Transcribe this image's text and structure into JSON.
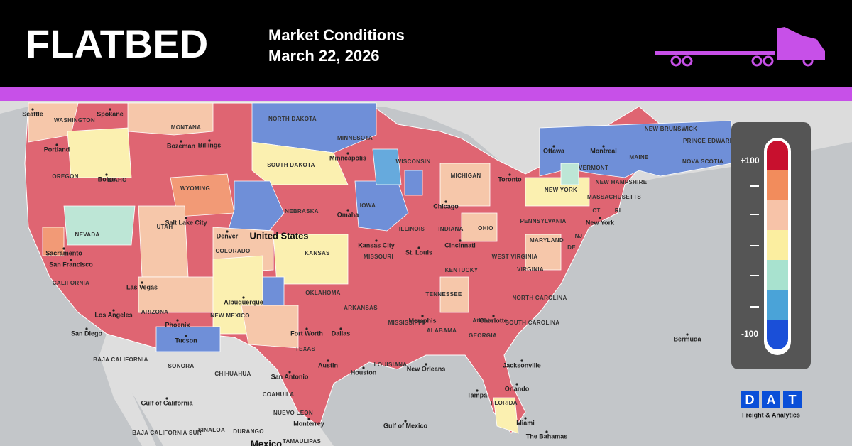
{
  "header": {
    "title": "FLATBED",
    "subtitle": "Market Conditions",
    "date": "March 22, 2026"
  },
  "legend": {
    "max_label": "+100",
    "min_label": "-100"
  },
  "logo": {
    "letters": [
      "D",
      "A",
      "T"
    ],
    "tagline": "Freight & Analytics"
  },
  "map": {
    "labels": [
      "Seattle",
      "WASHINGTON",
      "Spokane",
      "MONTANA",
      "Portland",
      "OREGON",
      "IDAHO",
      "Boise",
      "Bozeman",
      "Billings",
      "WYOMING",
      "NORTH DAKOTA",
      "SOUTH DAKOTA",
      "MINNESOTA",
      "Minneapolis",
      "WISCONSIN",
      "MICHIGAN",
      "NEBRASKA",
      "Omaha",
      "IOWA",
      "Chicago",
      "ILLINOIS",
      "INDIANA",
      "OHIO",
      "United States",
      "Denver",
      "COLORADO",
      "UTAH",
      "Salt Lake City",
      "NEVADA",
      "Sacramento",
      "San Francisco",
      "CALIFORNIA",
      "Las Vegas",
      "Los Angeles",
      "San Diego",
      "ARIZONA",
      "Phoenix",
      "Tucson",
      "NEW MEXICO",
      "Albuquerque",
      "KANSAS",
      "Kansas City",
      "MISSOURI",
      "St. Louis",
      "Cincinnati",
      "KENTUCKY",
      "WEST VIRGINIA",
      "VIRGINIA",
      "PENNSYLVANIA",
      "MARYLAND",
      "NEW YORK",
      "New York",
      "Toronto",
      "Ottawa",
      "Montreal",
      "VERMONT",
      "NEW HAMPSHIRE",
      "MAINE",
      "MASSACHUSETTS",
      "CT",
      "RI",
      "NJ",
      "DE",
      "NEW BRUNSWICK",
      "PRINCE EDWARD ISLAND",
      "NOVA SCOTIA",
      "OKLAHOMA",
      "ARKANSAS",
      "TENNESSEE",
      "Memphis",
      "Charlotte",
      "NORTH CAROLINA",
      "SOUTH CAROLINA",
      "Atlanta",
      "GEORGIA",
      "ALABAMA",
      "MISSISSIPPI",
      "LOUISIANA",
      "New Orleans",
      "Fort Worth",
      "Dallas",
      "TEXAS",
      "Austin",
      "Houston",
      "San Antonio",
      "Jacksonville",
      "Orlando",
      "Tampa",
      "FLORIDA",
      "Miami",
      "Bermuda",
      "The Bahamas",
      "Gulf of Mexico",
      "BAJA CALIFORNIA",
      "SONORA",
      "CHIHUAHUA",
      "COAHUILA",
      "NUEVO LEON",
      "Monterrey",
      "SINALOA",
      "DURANGO",
      "TAMAULIPAS",
      "BAJA CALIFORNIA SUR",
      "Gulf of California",
      "Mexico"
    ]
  }
}
